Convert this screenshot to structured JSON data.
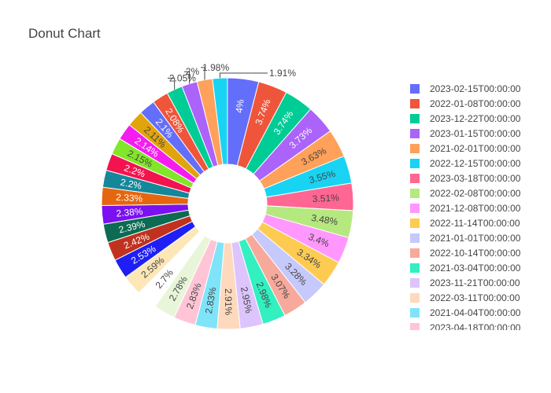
{
  "chart_data": {
    "type": "pie",
    "hole": true,
    "title": "Donut Chart",
    "legend_position": "right",
    "slices": [
      {
        "label": "2023-02-15T00:00:00",
        "value": 4,
        "text": "4%",
        "color": "#636efa"
      },
      {
        "label": "2022-01-08T00:00:00",
        "value": 3.74,
        "text": "3.74%",
        "color": "#EF553B"
      },
      {
        "label": "2023-12-22T00:00:00",
        "value": 3.74,
        "text": "3.74%",
        "color": "#00cc96"
      },
      {
        "label": "2023-01-15T00:00:00",
        "value": 3.73,
        "text": "3.73%",
        "color": "#ab63fa"
      },
      {
        "label": "2021-02-01T00:00:00",
        "value": 3.63,
        "text": "3.63%",
        "color": "#FFA15A"
      },
      {
        "label": "2022-12-15T00:00:00",
        "value": 3.55,
        "text": "3.55%",
        "color": "#19d3f3"
      },
      {
        "label": "2023-03-18T00:00:00",
        "value": 3.51,
        "text": "3.51%",
        "color": "#FF6692"
      },
      {
        "label": "2022-02-08T00:00:00",
        "value": 3.48,
        "text": "3.48%",
        "color": "#B6E880"
      },
      {
        "label": "2021-12-08T00:00:00",
        "value": 3.4,
        "text": "3.4%",
        "color": "#FF97FF"
      },
      {
        "label": "2022-11-14T00:00:00",
        "value": 3.34,
        "text": "3.34%",
        "color": "#FECB52"
      },
      {
        "label": "2021-01-01T00:00:00",
        "value": 3.28,
        "text": "3.28%",
        "color": "#c6c9fc"
      },
      {
        "label": "2022-10-14T00:00:00",
        "value": 3.07,
        "text": "3.07%",
        "color": "#f7a99b"
      },
      {
        "label": "2021-03-04T00:00:00",
        "value": 2.98,
        "text": "2.98%",
        "color": "#33f0c0"
      },
      {
        "label": "2023-11-21T00:00:00",
        "value": 2.95,
        "text": "2.95%",
        "color": "#ddc4fd"
      },
      {
        "label": "2022-03-11T00:00:00",
        "value": 2.91,
        "text": "2.91%",
        "color": "#ffd9bd"
      },
      {
        "label": "2021-04-04T00:00:00",
        "value": 2.83,
        "text": "2.83%",
        "color": "#7fe4f8"
      },
      {
        "label": "2023-04-18T00:00:00",
        "value": 2.83,
        "text": "2.83%",
        "color": "#ffc5d6"
      },
      {
        "label": "",
        "value": 2.78,
        "text": "2.78%",
        "color": "#e9f5d9"
      },
      {
        "label": "",
        "value": 2.7,
        "text": "2.7%",
        "color": "#ffffff"
      },
      {
        "label": "",
        "value": 2.59,
        "text": "2.59%",
        "color": "#fde7b7"
      },
      {
        "label": "",
        "value": 2.53,
        "text": "2.53%",
        "color": "#1f1ff5"
      },
      {
        "label": "",
        "value": 2.42,
        "text": "2.42%",
        "color": "#c0321f"
      },
      {
        "label": "",
        "value": 2.39,
        "text": "2.39%",
        "color": "#0c6b52"
      },
      {
        "label": "",
        "value": 2.38,
        "text": "2.38%",
        "color": "#7b10f0"
      },
      {
        "label": "",
        "value": 2.33,
        "text": "2.33%",
        "color": "#e6660f"
      },
      {
        "label": "",
        "value": 2.2,
        "text": "2.2%",
        "color": "#14879a"
      },
      {
        "label": "",
        "value": 2.2,
        "text": "2.2%",
        "color": "#f3134e"
      },
      {
        "label": "",
        "value": 2.15,
        "text": "2.15%",
        "color": "#82e62a"
      },
      {
        "label": "",
        "value": 2.14,
        "text": "2.14%",
        "color": "#f41df0"
      },
      {
        "label": "",
        "value": 2.11,
        "text": "2.11%",
        "color": "#e1a40b"
      },
      {
        "label": "",
        "value": 2.1,
        "text": "2.1%",
        "color": "#636efa"
      },
      {
        "label": "",
        "value": 2.08,
        "text": "2.08%",
        "color": "#EF553B"
      },
      {
        "label": "",
        "value": 2.05,
        "text": "2.05%",
        "color": "#00cc96"
      },
      {
        "label": "",
        "value": 2,
        "text": "2%",
        "color": "#ab63fa"
      },
      {
        "label": "",
        "value": 1.98,
        "text": "1.98%",
        "color": "#FFA15A"
      },
      {
        "label": "",
        "value": 1.91,
        "text": "1.91%",
        "color": "#19d3f3"
      }
    ]
  }
}
